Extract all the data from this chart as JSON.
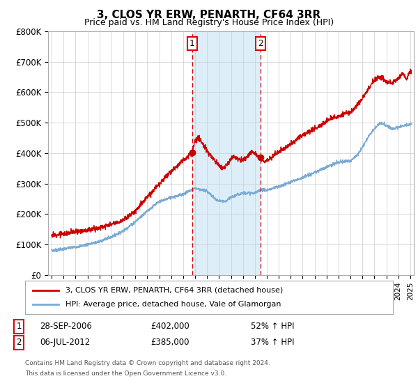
{
  "title": "3, CLOS YR ERW, PENARTH, CF64 3RR",
  "subtitle": "Price paid vs. HM Land Registry's House Price Index (HPI)",
  "legend_line1": "3, CLOS YR ERW, PENARTH, CF64 3RR (detached house)",
  "legend_line2": "HPI: Average price, detached house, Vale of Glamorgan",
  "annotation1_date": "28-SEP-2006",
  "annotation1_price": "£402,000",
  "annotation1_hpi": "52% ↑ HPI",
  "annotation2_date": "06-JUL-2012",
  "annotation2_price": "£385,000",
  "annotation2_hpi": "37% ↑ HPI",
  "footer1": "Contains HM Land Registry data © Crown copyright and database right 2024.",
  "footer2": "This data is licensed under the Open Government Licence v3.0.",
  "sale1_date_num": 2006.75,
  "sale1_price": 402000,
  "sale2_date_num": 2012.5,
  "sale2_price": 385000,
  "hpi_color": "#7aaad4",
  "property_color": "#cc0000",
  "shading_color": "#ddeef8",
  "vline_color": "#dd0000",
  "ylim_min": 0,
  "ylim_max": 800000,
  "xlim_min": 1994.7,
  "xlim_max": 2025.3
}
